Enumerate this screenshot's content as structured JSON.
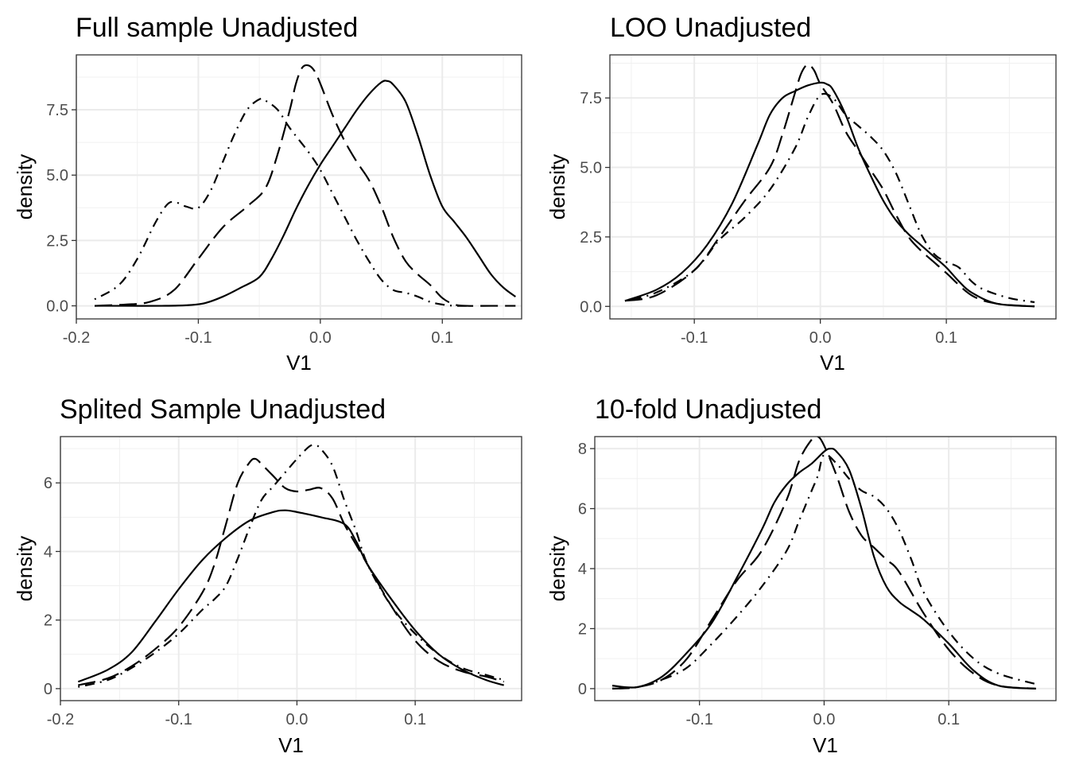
{
  "chart_data": [
    {
      "type": "line",
      "title": "Full sample Unadjusted",
      "xlabel": "V1",
      "ylabel": "density",
      "xlim": [
        -0.2,
        0.165
      ],
      "ylim": [
        -0.5,
        9.6
      ],
      "x_ticks": [
        -0.2,
        -0.1,
        0.0,
        0.1
      ],
      "x_tick_labels": [
        "-0.2",
        "-0.1",
        "0.0",
        "0.1"
      ],
      "y_ticks": [
        0,
        2.5,
        5.0,
        7.5
      ],
      "y_tick_labels": [
        "0.0",
        "2.5",
        "5.0",
        "7.5"
      ],
      "grid": true,
      "series": [
        {
          "style": "solid",
          "x": [
            -0.185,
            -0.16,
            -0.13,
            -0.11,
            -0.095,
            -0.08,
            -0.065,
            -0.05,
            -0.04,
            -0.03,
            -0.02,
            -0.01,
            0.0,
            0.01,
            0.02,
            0.03,
            0.04,
            0.05,
            0.055,
            0.06,
            0.07,
            0.08,
            0.09,
            0.1,
            0.11,
            0.12,
            0.13,
            0.14,
            0.15,
            0.16
          ],
          "y": [
            0,
            0,
            0,
            0.02,
            0.1,
            0.35,
            0.7,
            1.1,
            1.8,
            2.7,
            3.7,
            4.6,
            5.4,
            6.1,
            6.8,
            7.5,
            8.1,
            8.55,
            8.6,
            8.45,
            7.8,
            6.5,
            5.0,
            3.8,
            3.2,
            2.6,
            1.9,
            1.2,
            0.7,
            0.35
          ]
        },
        {
          "style": "longdash",
          "x": [
            -0.185,
            -0.16,
            -0.14,
            -0.12,
            -0.1,
            -0.08,
            -0.06,
            -0.045,
            -0.035,
            -0.025,
            -0.02,
            -0.015,
            -0.01,
            -0.005,
            0.0,
            0.01,
            0.02,
            0.03,
            0.04,
            0.05,
            0.06,
            0.07,
            0.08,
            0.09,
            0.1,
            0.11,
            0.12,
            0.14,
            0.16
          ],
          "y": [
            0,
            0.05,
            0.15,
            0.6,
            1.8,
            3.0,
            3.8,
            4.5,
            5.8,
            7.5,
            8.5,
            9.1,
            9.2,
            9.0,
            8.5,
            7.3,
            6.3,
            5.5,
            4.8,
            3.8,
            2.6,
            1.7,
            1.2,
            0.8,
            0.3,
            0.05,
            0,
            0,
            0
          ]
        },
        {
          "style": "dotdash",
          "x": [
            -0.185,
            -0.165,
            -0.15,
            -0.135,
            -0.125,
            -0.118,
            -0.11,
            -0.1,
            -0.09,
            -0.08,
            -0.07,
            -0.06,
            -0.05,
            -0.045,
            -0.035,
            -0.025,
            -0.01,
            0.0,
            0.01,
            0.02,
            0.03,
            0.04,
            0.05,
            0.06,
            0.07,
            0.08,
            0.09,
            0.1,
            0.11,
            0.12
          ],
          "y": [
            0.25,
            0.8,
            1.8,
            3.2,
            3.9,
            3.95,
            3.8,
            3.75,
            4.4,
            5.5,
            6.6,
            7.5,
            7.9,
            7.85,
            7.5,
            6.8,
            5.9,
            5.2,
            4.3,
            3.4,
            2.5,
            1.7,
            1.0,
            0.6,
            0.5,
            0.35,
            0.15,
            0.05,
            0,
            0
          ]
        }
      ]
    },
    {
      "type": "line",
      "title": "LOO Unadjusted",
      "xlabel": "V1",
      "ylabel": "density",
      "xlim": [
        -0.167,
        0.187
      ],
      "ylim": [
        -0.45,
        9.05
      ],
      "x_ticks": [
        -0.1,
        0.0,
        0.1
      ],
      "x_tick_labels": [
        "-0.1",
        "0.0",
        "0.1"
      ],
      "y_ticks": [
        0,
        2.5,
        5.0,
        7.5
      ],
      "y_tick_labels": [
        "0.0",
        "2.5",
        "5.0",
        "7.5"
      ],
      "grid": true,
      "series": [
        {
          "style": "solid",
          "x": [
            -0.155,
            -0.13,
            -0.11,
            -0.09,
            -0.07,
            -0.05,
            -0.04,
            -0.03,
            -0.02,
            -0.01,
            0.0,
            0.005,
            0.01,
            0.02,
            0.03,
            0.04,
            0.05,
            0.06,
            0.07,
            0.08,
            0.09,
            0.1,
            0.11,
            0.12,
            0.14,
            0.17
          ],
          "y": [
            0.2,
            0.6,
            1.2,
            2.2,
            3.7,
            5.8,
            6.9,
            7.5,
            7.75,
            7.95,
            8.05,
            8.0,
            7.8,
            6.9,
            5.7,
            4.7,
            3.8,
            3.1,
            2.6,
            2.2,
            1.8,
            1.4,
            0.9,
            0.5,
            0.1,
            0
          ]
        },
        {
          "style": "longdash",
          "x": [
            -0.155,
            -0.13,
            -0.1,
            -0.08,
            -0.06,
            -0.04,
            -0.03,
            -0.02,
            -0.015,
            -0.01,
            -0.005,
            0.0,
            0.01,
            0.02,
            0.03,
            0.04,
            0.05,
            0.06,
            0.07,
            0.08,
            0.09,
            0.1,
            0.12,
            0.14,
            0.17
          ],
          "y": [
            0.2,
            0.4,
            1.3,
            2.5,
            3.8,
            5.0,
            6.2,
            7.7,
            8.4,
            8.7,
            8.5,
            8.0,
            7.3,
            6.3,
            5.6,
            4.9,
            4.2,
            3.3,
            2.5,
            2.0,
            1.6,
            1.2,
            0.4,
            0.1,
            0
          ]
        },
        {
          "style": "dotdash",
          "x": [
            -0.155,
            -0.13,
            -0.1,
            -0.08,
            -0.06,
            -0.04,
            -0.02,
            -0.01,
            0.0,
            0.01,
            0.02,
            0.03,
            0.04,
            0.05,
            0.06,
            0.07,
            0.08,
            0.09,
            0.1,
            0.11,
            0.12,
            0.13,
            0.15,
            0.17
          ],
          "y": [
            0.2,
            0.5,
            1.3,
            2.4,
            3.2,
            4.2,
            5.7,
            6.8,
            7.6,
            7.5,
            6.9,
            6.5,
            6.1,
            5.6,
            4.8,
            3.7,
            2.6,
            1.9,
            1.6,
            1.4,
            0.9,
            0.6,
            0.3,
            0.15
          ]
        }
      ]
    },
    {
      "type": "line",
      "title": "Splited Sample Unadjusted",
      "xlabel": "V1",
      "ylabel": "density",
      "xlim": [
        -0.2,
        0.19
      ],
      "ylim": [
        -0.35,
        7.35
      ],
      "x_ticks": [
        -0.2,
        -0.1,
        0.0,
        0.1
      ],
      "x_tick_labels": [
        "-0.2",
        "-0.1",
        "0.0",
        "0.1"
      ],
      "y_ticks": [
        0,
        2,
        4,
        6
      ],
      "y_tick_labels": [
        "0",
        "2",
        "4",
        "6"
      ],
      "grid": true,
      "series": [
        {
          "style": "solid",
          "x": [
            -0.185,
            -0.16,
            -0.14,
            -0.12,
            -0.1,
            -0.08,
            -0.06,
            -0.04,
            -0.02,
            -0.01,
            0.0,
            0.02,
            0.04,
            0.05,
            0.06,
            0.08,
            0.1,
            0.12,
            0.14,
            0.16,
            0.175
          ],
          "y": [
            0.2,
            0.55,
            1.05,
            1.95,
            2.9,
            3.75,
            4.4,
            4.9,
            5.15,
            5.2,
            5.15,
            5.0,
            4.8,
            4.3,
            3.6,
            2.6,
            1.7,
            1.0,
            0.55,
            0.25,
            0.1
          ]
        },
        {
          "style": "longdash",
          "x": [
            -0.185,
            -0.16,
            -0.14,
            -0.12,
            -0.1,
            -0.08,
            -0.07,
            -0.06,
            -0.05,
            -0.04,
            -0.035,
            -0.03,
            -0.02,
            -0.01,
            0.0,
            0.01,
            0.02,
            0.03,
            0.04,
            0.05,
            0.06,
            0.08,
            0.1,
            0.12,
            0.14,
            0.16,
            0.175
          ],
          "y": [
            0.1,
            0.3,
            0.65,
            1.15,
            1.8,
            2.8,
            3.6,
            4.8,
            6.0,
            6.6,
            6.7,
            6.55,
            6.2,
            5.85,
            5.75,
            5.8,
            5.85,
            5.55,
            4.8,
            4.2,
            3.6,
            2.4,
            1.4,
            0.8,
            0.5,
            0.35,
            0.2
          ]
        },
        {
          "style": "dotdash",
          "x": [
            -0.185,
            -0.16,
            -0.14,
            -0.12,
            -0.1,
            -0.08,
            -0.07,
            -0.06,
            -0.05,
            -0.04,
            -0.03,
            -0.02,
            -0.01,
            0.0,
            0.01,
            0.015,
            0.02,
            0.03,
            0.04,
            0.05,
            0.06,
            0.08,
            0.1,
            0.12,
            0.14,
            0.16,
            0.175
          ],
          "y": [
            0.05,
            0.25,
            0.6,
            1.05,
            1.6,
            2.3,
            2.6,
            3.0,
            3.8,
            4.7,
            5.5,
            5.9,
            6.3,
            6.7,
            7.05,
            7.1,
            7.0,
            6.5,
            5.5,
            4.6,
            3.6,
            2.4,
            1.6,
            1.0,
            0.6,
            0.4,
            0.25
          ]
        }
      ]
    },
    {
      "type": "line",
      "title": "10-fold Unadjusted",
      "xlabel": "V1",
      "ylabel": "density",
      "xlim": [
        -0.184,
        0.186
      ],
      "ylim": [
        -0.4,
        8.4
      ],
      "x_ticks": [
        -0.1,
        0.0,
        0.1
      ],
      "x_tick_labels": [
        "-0.1",
        "0.0",
        "0.1"
      ],
      "y_ticks": [
        0,
        2,
        4,
        6,
        8
      ],
      "y_tick_labels": [
        "0",
        "2",
        "4",
        "6",
        "8"
      ],
      "grid": true,
      "series": [
        {
          "style": "solid",
          "x": [
            -0.17,
            -0.15,
            -0.13,
            -0.11,
            -0.09,
            -0.07,
            -0.05,
            -0.04,
            -0.03,
            -0.02,
            -0.01,
            0.0,
            0.005,
            0.01,
            0.02,
            0.03,
            0.04,
            0.05,
            0.06,
            0.07,
            0.08,
            0.1,
            0.12,
            0.14,
            0.17
          ],
          "y": [
            0.1,
            0.05,
            0.4,
            1.2,
            2.2,
            3.7,
            5.3,
            6.2,
            6.8,
            7.2,
            7.5,
            7.9,
            8.0,
            7.9,
            7.3,
            6.0,
            4.4,
            3.4,
            2.9,
            2.6,
            2.3,
            1.5,
            0.6,
            0.1,
            0
          ]
        },
        {
          "style": "longdash",
          "x": [
            -0.17,
            -0.15,
            -0.13,
            -0.11,
            -0.09,
            -0.07,
            -0.05,
            -0.03,
            -0.02,
            -0.01,
            -0.005,
            0.0,
            0.01,
            0.02,
            0.03,
            0.04,
            0.05,
            0.06,
            0.08,
            0.1,
            0.12,
            0.14,
            0.17
          ],
          "y": [
            0,
            0.05,
            0.3,
            1.0,
            2.3,
            3.6,
            4.6,
            6.3,
            7.6,
            8.3,
            8.4,
            8.1,
            7.1,
            5.9,
            5.1,
            4.7,
            4.3,
            3.9,
            2.5,
            1.3,
            0.5,
            0.1,
            0
          ]
        },
        {
          "style": "dotdash",
          "x": [
            -0.17,
            -0.15,
            -0.13,
            -0.11,
            -0.09,
            -0.07,
            -0.05,
            -0.03,
            -0.02,
            -0.01,
            -0.005,
            0.0,
            0.01,
            0.02,
            0.03,
            0.04,
            0.05,
            0.06,
            0.07,
            0.08,
            0.1,
            0.12,
            0.14,
            0.17
          ],
          "y": [
            0,
            0.05,
            0.3,
            0.7,
            1.5,
            2.4,
            3.4,
            4.6,
            5.6,
            6.6,
            7.1,
            7.8,
            7.5,
            7.0,
            6.6,
            6.4,
            6.0,
            5.3,
            4.3,
            3.2,
            1.9,
            1.0,
            0.5,
            0.15
          ]
        }
      ]
    }
  ]
}
